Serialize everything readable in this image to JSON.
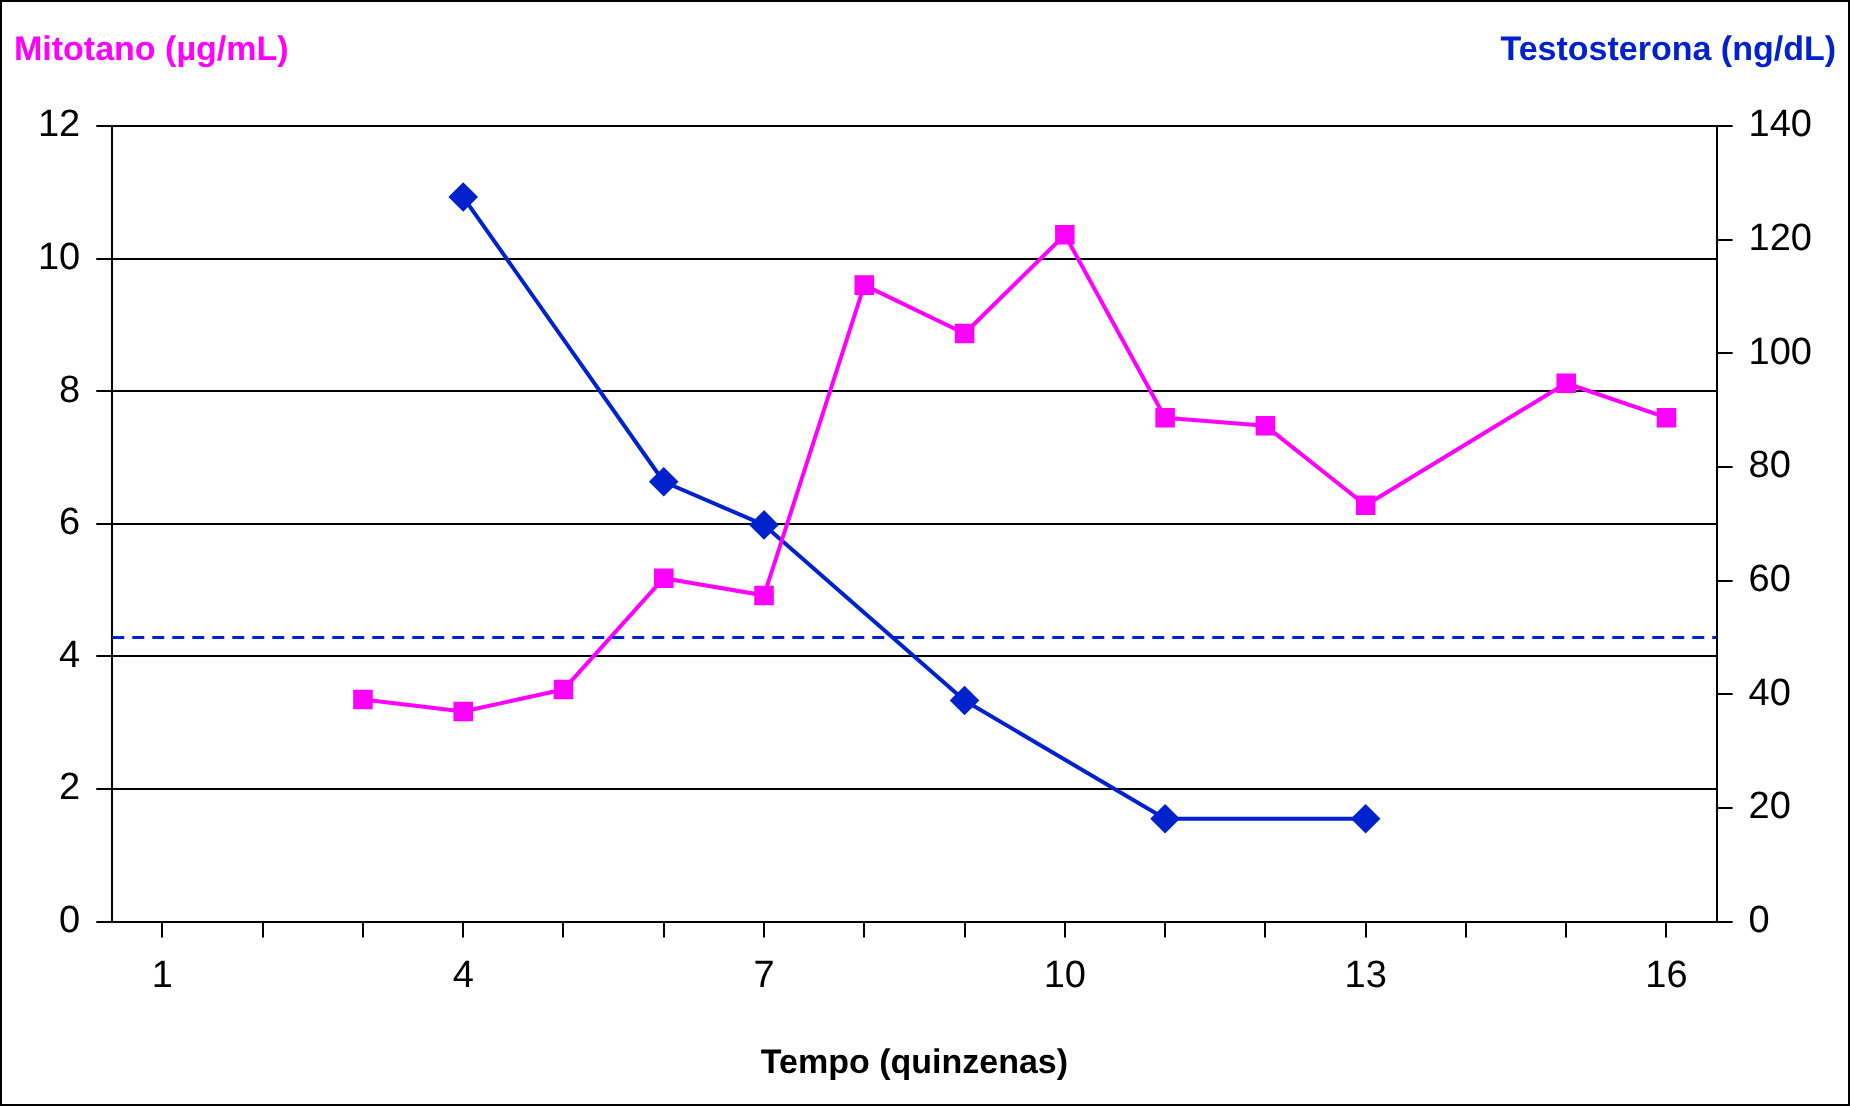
{
  "chart_data": {
    "type": "line",
    "xlabel": "Tempo (quinzenas)",
    "ylabel": "Mitotano (µg/mL)",
    "y2label": "Testosterona (ng/dL)",
    "xlim": [
      0.5,
      16.5
    ],
    "xticks": [
      1,
      {
        "value": 2,
        "label": null
      },
      {
        "value": 3,
        "label": null
      },
      4,
      {
        "value": 5,
        "label": null
      },
      {
        "value": 6,
        "label": null
      },
      7,
      {
        "value": 8,
        "label": null
      },
      {
        "value": 9,
        "label": null
      },
      10,
      {
        "value": 11,
        "label": null
      },
      {
        "value": 12,
        "label": null
      },
      13,
      {
        "value": 14,
        "label": null
      },
      {
        "value": 15,
        "label": null
      },
      16
    ],
    "ylim": [
      0,
      12
    ],
    "yticks": [
      0,
      2,
      4,
      6,
      8,
      10,
      12
    ],
    "y2lim": [
      0,
      140
    ],
    "y2ticks": [
      0,
      20,
      40,
      60,
      80,
      100,
      120,
      140
    ],
    "grid": "y",
    "legend": false,
    "line_style": "solid",
    "series": [
      {
        "color": "#ff00ff",
        "marker": "square",
        "x": [
          3,
          4,
          5,
          6,
          7,
          8,
          9,
          10,
          11,
          12,
          13,
          15,
          16
        ],
        "values": [
          3.35,
          3.17,
          3.5,
          5.18,
          4.92,
          9.6,
          8.87,
          10.36,
          7.6,
          7.48,
          6.28,
          8.12,
          7.6
        ]
      },
      {
        "color": "#0022cc",
        "marker": "diamond",
        "axis": "y2",
        "x": [
          4,
          6,
          7,
          9,
          11,
          13
        ],
        "values": [
          127.5,
          77.4,
          69.8,
          38.9,
          18.1,
          18.1
        ]
      }
    ],
    "ref_lines": [
      {
        "axis": "y2",
        "value": 50,
        "color": "#0022cc",
        "line_style": "dashed"
      }
    ]
  }
}
